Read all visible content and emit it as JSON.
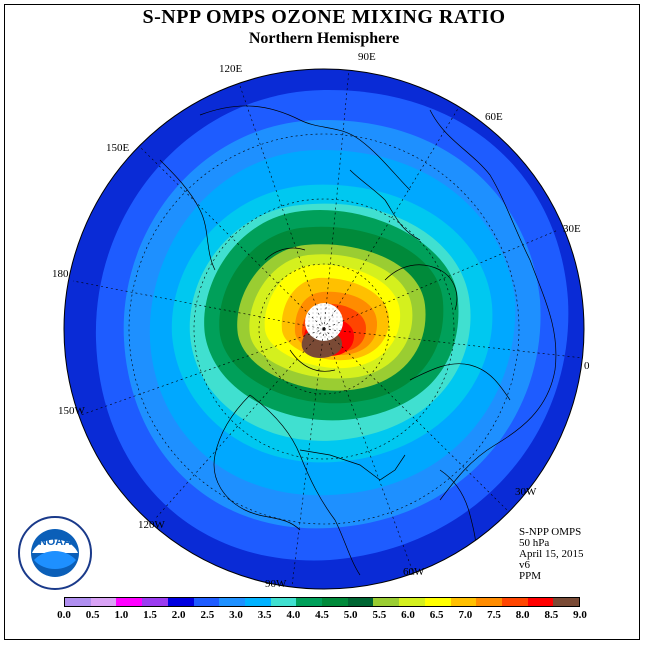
{
  "title": "S-NPP OMPS OZONE MIXING RATIO",
  "subtitle": "Northern Hemisphere",
  "longitude_labels": [
    "90E",
    "120E",
    "60E",
    "150E",
    "30E",
    "180",
    "0",
    "150W",
    "30W",
    "120W",
    "60W",
    "90W"
  ],
  "info": {
    "product": "S-NPP OMPS",
    "level": "50 hPa",
    "date": "April 15, 2015",
    "version": "v6",
    "units": "PPM"
  },
  "logo": {
    "text": "NOAA",
    "ring_text": "NATIONAL OCEANIC AND ATMOSPHERIC ADMINISTRATION · U.S. DEPARTMENT OF COMMERCE"
  },
  "colorbar": {
    "ticks": [
      "0.0",
      "0.5",
      "1.0",
      "1.5",
      "2.0",
      "2.5",
      "3.0",
      "3.5",
      "4.0",
      "4.5",
      "5.0",
      "5.5",
      "6.0",
      "6.5",
      "7.0",
      "7.5",
      "8.0",
      "8.5",
      "9.0"
    ],
    "colors": [
      "#b08ff0",
      "#d9a3f5",
      "#ff00ff",
      "#9b3cf0",
      "#0000e0",
      "#1e5cff",
      "#1e90ff",
      "#00b2ff",
      "#40e0d0",
      "#00a05a",
      "#008a3a",
      "#006633",
      "#9acd32",
      "#d4f01e",
      "#ffff00",
      "#ffc000",
      "#ff8c00",
      "#ff4500",
      "#ff0000",
      "#7a4a35"
    ]
  }
}
